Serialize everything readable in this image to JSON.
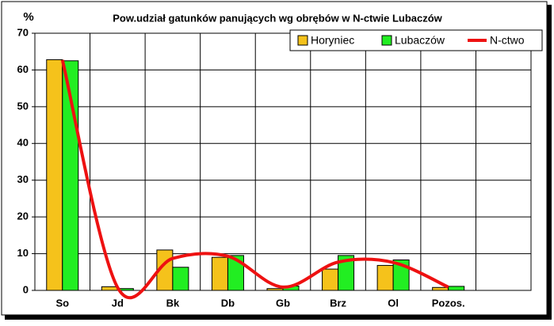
{
  "chart_data": {
    "type": "bar",
    "title": "Pow.udział gatunków panujących wg obrębów w N-ctwie Lubaczów",
    "y_label": "%",
    "categories": [
      "So",
      "Jd",
      "Bk",
      "Db",
      "Gb",
      "Brz",
      "Ol",
      "Pozos.",
      null
    ],
    "series": [
      {
        "name": "Horyniec",
        "color": "#f5c21b",
        "values": [
          62.8,
          1,
          11,
          9,
          0.5,
          5.8,
          6.8,
          0.8,
          null
        ]
      },
      {
        "name": "Lubaczów",
        "color": "#22ee22",
        "values": [
          62.5,
          0.5,
          6.3,
          9.5,
          1.2,
          9.5,
          8.3,
          1.1,
          null
        ]
      },
      {
        "name": "N-ctwo",
        "color": "#ee1111",
        "type": "line",
        "smooth": true,
        "values": [
          62.7,
          0.8,
          8.7,
          9.3,
          0.9,
          7.7,
          7.6,
          0.9,
          null
        ]
      }
    ],
    "ylim": [
      0,
      70
    ],
    "yticks": [
      0,
      10,
      20,
      30,
      40,
      50,
      60,
      70
    ],
    "grid": true,
    "legend": "top-right"
  }
}
